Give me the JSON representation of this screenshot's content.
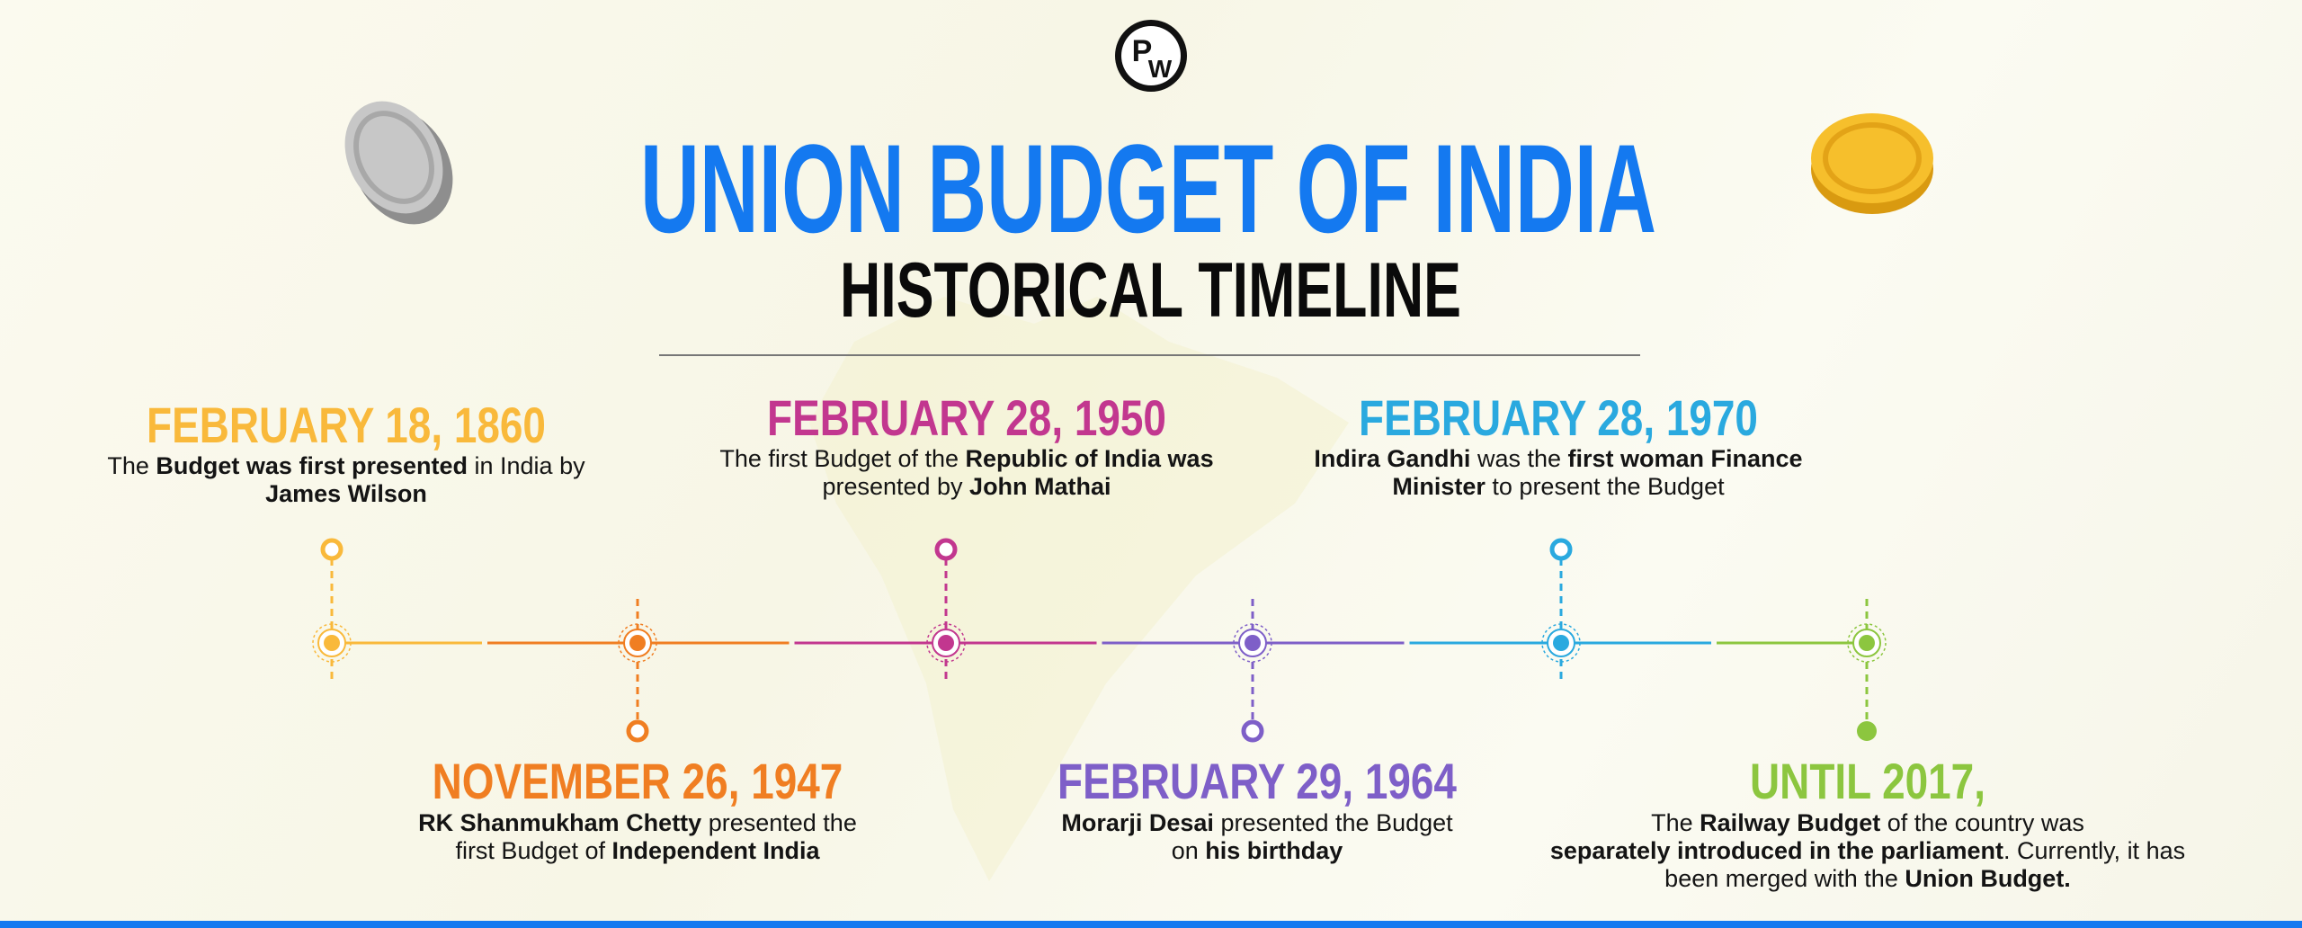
{
  "logo": [
    "P",
    "W"
  ],
  "title": "UNION BUDGET OF INDIA",
  "subtitle": "HISTORICAL TIMELINE",
  "events": [
    {
      "date": "FEBRUARY 18, 1860",
      "position": "top",
      "color": "#f9b93b",
      "description": [
        [
          {
            "text": "The ",
            "bold": false
          },
          {
            "text": "Budget was first presented",
            "bold": true
          },
          {
            "text": " in India by",
            "bold": false
          }
        ],
        [
          {
            "text": "James Wilson",
            "bold": true
          }
        ]
      ]
    },
    {
      "date": "NOVEMBER 26, 1947",
      "position": "bottom",
      "color": "#f07e22",
      "description": [
        [
          {
            "text": "RK Shanmukham Chetty",
            "bold": true
          },
          {
            "text": " presented the",
            "bold": false
          }
        ],
        [
          {
            "text": "first Budget of ",
            "bold": false
          },
          {
            "text": "Independent India",
            "bold": true
          }
        ]
      ]
    },
    {
      "date": "FEBRUARY 28, 1950",
      "position": "top",
      "color": "#c2378f",
      "description": [
        [
          {
            "text": "The first Budget of the ",
            "bold": false
          },
          {
            "text": "Republic of India was",
            "bold": true
          }
        ],
        [
          {
            "text": "presented by ",
            "bold": false
          },
          {
            "text": "John Mathai",
            "bold": true
          }
        ]
      ]
    },
    {
      "date": "FEBRUARY 29, 1964",
      "position": "bottom",
      "color": "#7e5fc8",
      "description": [
        [
          {
            "text": "Morarji Desai",
            "bold": true
          },
          {
            "text": " presented the Budget",
            "bold": false
          }
        ],
        [
          {
            "text": "on ",
            "bold": false
          },
          {
            "text": "his birthday",
            "bold": true
          }
        ]
      ]
    },
    {
      "date": "FEBRUARY 28, 1970",
      "position": "top",
      "color": "#2aa9df",
      "description": [
        [
          {
            "text": "Indira Gandhi",
            "bold": true
          },
          {
            "text": " was the ",
            "bold": false
          },
          {
            "text": "first woman Finance",
            "bold": true
          }
        ],
        [
          {
            "text": "Minister",
            "bold": true
          },
          {
            "text": " to present the Budget",
            "bold": false
          }
        ]
      ]
    },
    {
      "date": "UNTIL 2017,",
      "position": "bottom",
      "color": "#8cc63f",
      "description": [
        [
          {
            "text": "The ",
            "bold": false
          },
          {
            "text": "Railway Budget",
            "bold": true
          },
          {
            "text": " of the country was",
            "bold": false
          }
        ],
        [
          {
            "text": "separately introduced in the parliament",
            "bold": true
          },
          {
            "text": ". Currently, it has",
            "bold": false
          }
        ],
        [
          {
            "text": "been merged with the ",
            "bold": false
          },
          {
            "text": "Union Budget.",
            "bold": true
          }
        ]
      ]
    }
  ]
}
